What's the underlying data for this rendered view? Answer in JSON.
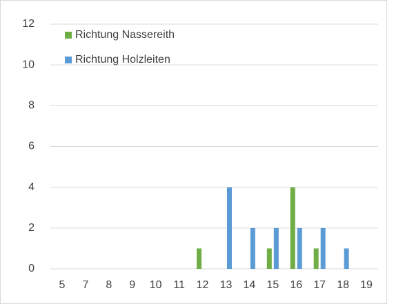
{
  "chart_data": {
    "type": "bar",
    "categories": [
      "5",
      "7",
      "8",
      "9",
      "10",
      "11",
      "12",
      "13",
      "14",
      "15",
      "16",
      "17",
      "18",
      "19"
    ],
    "series": [
      {
        "name": "Richtung Nassereith",
        "color": "#70ad47",
        "values": [
          0,
          0,
          0,
          0,
          0,
          0,
          1,
          0,
          0,
          1,
          4,
          1,
          0,
          0
        ]
      },
      {
        "name": "Richtung Holzleiten",
        "color": "#5b9bd5",
        "values": [
          0,
          0,
          0,
          0,
          0,
          0,
          0,
          4,
          2,
          2,
          2,
          2,
          1,
          0
        ]
      }
    ],
    "ylim": [
      0,
      12
    ],
    "yticks": [
      0,
      2,
      4,
      6,
      8,
      10,
      12
    ],
    "grid": true,
    "legend": "upper left"
  }
}
